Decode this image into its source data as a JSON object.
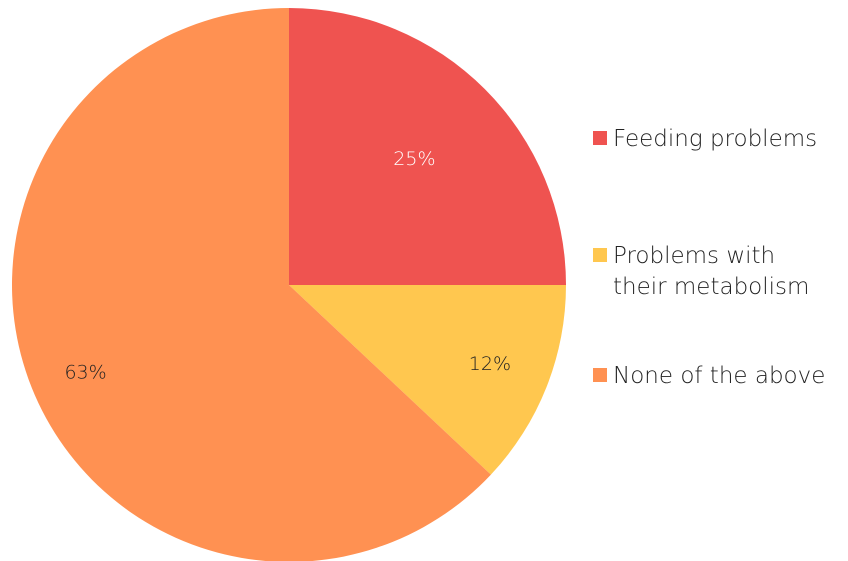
{
  "chart_data": {
    "type": "pie",
    "categories": [
      "Feeding problems",
      "Problems with\ntheir metabolism",
      "None of the above"
    ],
    "values": [
      25,
      12,
      63
    ],
    "data_labels": [
      "25%",
      "12%",
      "63%"
    ],
    "colors": [
      "#EF5350",
      "#FFC74F",
      "#FF9152"
    ],
    "label_colors": [
      "#ffffff",
      "#222222",
      "#222222"
    ],
    "legend_position": "right",
    "title": "",
    "start_angle_deg": 0,
    "direction": "clockwise"
  }
}
